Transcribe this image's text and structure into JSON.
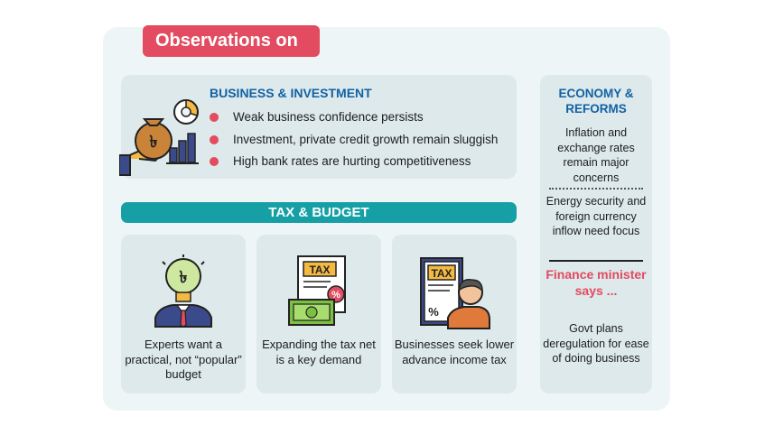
{
  "title": "Observations on",
  "business": {
    "heading": "BUSINESS & INVESTMENT",
    "bullets": [
      "Weak business confidence persists",
      "Investment, private credit growth remain sluggish",
      "High bank rates are hurting competitiveness"
    ]
  },
  "tax": {
    "heading": "TAX & BUDGET",
    "cards": [
      {
        "text": "Experts want a practical, not “popular” budget",
        "icon": "idea-person-icon"
      },
      {
        "text": "Expanding the tax net is a key demand",
        "icon": "tax-document-money-icon"
      },
      {
        "text": "Businesses seek lower advance income tax",
        "icon": "tax-businessman-icon"
      }
    ],
    "icon_labels": {
      "tax": "TAX",
      "percent": "%"
    }
  },
  "economy": {
    "heading": "ECONOMY & REFORMS",
    "items": [
      "Inflation and exchange rates remain major concerns",
      "Energy security and foreign currency inflow need focus"
    ]
  },
  "finance_minister": {
    "heading": "Finance minister says ...",
    "text": "Govt plans deregulation for ease of doing business"
  },
  "colors": {
    "accent_red": "#e24b60",
    "heading_blue": "#1162a6",
    "teal": "#16a0a6",
    "panel": "#dde9ea",
    "background": "#eef5f6"
  }
}
